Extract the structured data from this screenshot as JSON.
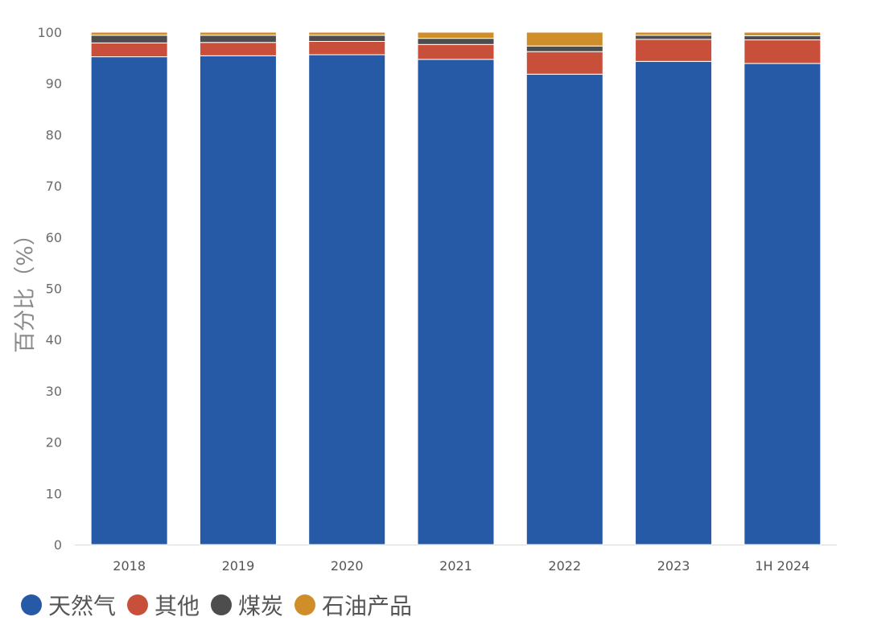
{
  "chart_data": {
    "type": "bar",
    "stacked": true,
    "categories": [
      "2018",
      "2019",
      "2020",
      "2021",
      "2022",
      "2023",
      "1H 2024"
    ],
    "series": [
      {
        "name": "天然气",
        "color": "#2659A6",
        "values": [
          95.2,
          95.4,
          95.6,
          94.7,
          91.8,
          94.3,
          93.9
        ]
      },
      {
        "name": "其他",
        "color": "#C8503A",
        "values": [
          2.7,
          2.6,
          2.6,
          2.9,
          4.4,
          4.3,
          4.6
        ]
      },
      {
        "name": "煤炭",
        "color": "#4D4D4D",
        "values": [
          1.5,
          1.4,
          1.2,
          1.2,
          1.1,
          0.8,
          0.8
        ]
      },
      {
        "name": "石油产品",
        "color": "#D08E2B",
        "values": [
          0.6,
          0.6,
          0.6,
          1.2,
          2.7,
          0.6,
          0.7
        ]
      }
    ],
    "ylabel": "百分比（%）",
    "xlabel": "",
    "title": "",
    "ylim": [
      0,
      100
    ],
    "yticks": [
      0,
      10,
      20,
      30,
      40,
      50,
      60,
      70,
      80,
      90,
      100
    ],
    "grid": false,
    "legend_position": "bottom-left"
  }
}
